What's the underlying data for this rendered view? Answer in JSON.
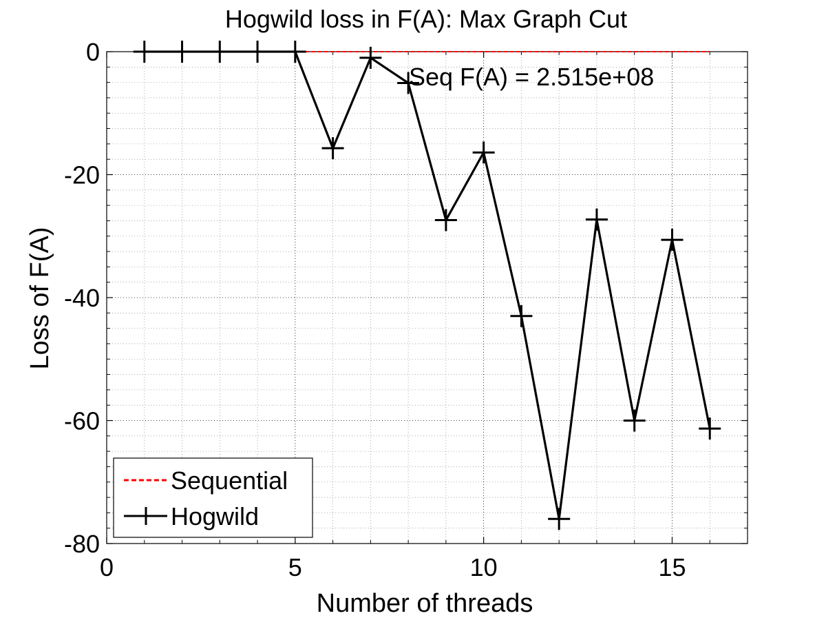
{
  "chart_data": {
    "type": "line",
    "title": "Hogwild loss in F(A): Max Graph Cut",
    "xlabel": "Number of threads",
    "ylabel": "Loss of F(A)",
    "xlim": [
      0,
      17
    ],
    "ylim": [
      -80,
      0
    ],
    "xticks": [
      "0",
      "5",
      "10",
      "15"
    ],
    "yticks": [
      "0",
      "-20",
      "-40",
      "-60",
      "-80"
    ],
    "grid": true,
    "legend_position": "bottom-left",
    "annotation": "Seq F(A) = 2.515e+08",
    "series": [
      {
        "name": "Sequential",
        "style": "dashed",
        "color": "#ff0000",
        "x": [
          1,
          16
        ],
        "y": [
          0,
          0
        ]
      },
      {
        "name": "Hogwild",
        "style": "solid",
        "marker": "plus",
        "color": "#000000",
        "x": [
          1,
          2,
          3,
          4,
          5,
          6,
          7,
          8,
          9,
          10,
          11,
          12,
          13,
          14,
          15,
          16
        ],
        "y": [
          0,
          0,
          0,
          0,
          0,
          -15.7,
          -1,
          -5.1,
          -27.4,
          -16.4,
          -43,
          -76,
          -27.3,
          -60,
          -30.6,
          -61.3
        ]
      }
    ]
  }
}
